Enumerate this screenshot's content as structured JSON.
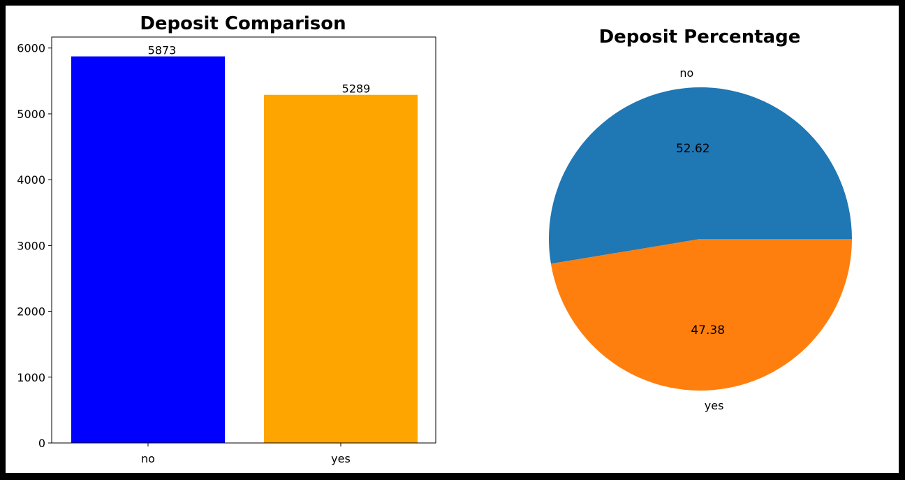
{
  "chart_data": [
    {
      "type": "bar",
      "title": "Deposit Comparison",
      "categories": [
        "no",
        "yes"
      ],
      "values": [
        5873,
        5289
      ],
      "colors": [
        "#0000ff",
        "#ffa500"
      ],
      "data_labels": [
        "5873",
        "5289"
      ],
      "xlabel": "",
      "ylabel": "",
      "ylim": [
        0,
        6167
      ],
      "yticks": [
        0,
        1000,
        2000,
        3000,
        4000,
        5000,
        6000
      ],
      "grid": false
    },
    {
      "type": "pie",
      "title": "Deposit Percentage",
      "labels": [
        "no",
        "yes"
      ],
      "values": [
        52.62,
        47.38
      ],
      "autopct_labels": [
        "52.62",
        "47.38"
      ],
      "colors": [
        "#1f77b4",
        "#ff7f0e"
      ]
    }
  ]
}
